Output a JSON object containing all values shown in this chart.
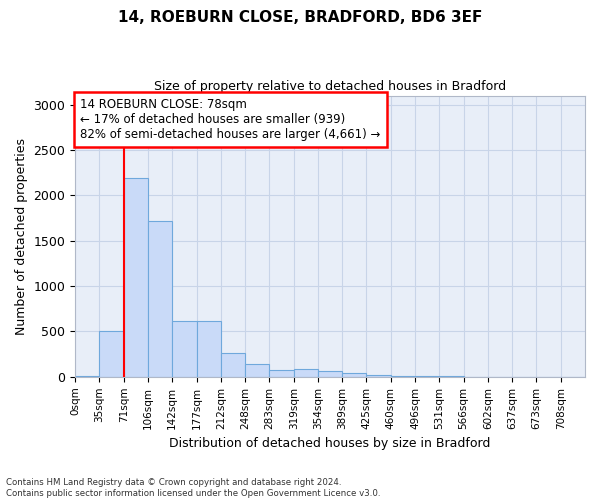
{
  "title_line1": "14, ROEBURN CLOSE, BRADFORD, BD6 3EF",
  "title_line2": "Size of property relative to detached houses in Bradford",
  "xlabel": "Distribution of detached houses by size in Bradford",
  "ylabel": "Number of detached properties",
  "footnote": "Contains HM Land Registry data © Crown copyright and database right 2024.\nContains public sector information licensed under the Open Government Licence v3.0.",
  "bin_labels": [
    "0sqm",
    "35sqm",
    "71sqm",
    "106sqm",
    "142sqm",
    "177sqm",
    "212sqm",
    "248sqm",
    "283sqm",
    "319sqm",
    "354sqm",
    "389sqm",
    "425sqm",
    "460sqm",
    "496sqm",
    "531sqm",
    "566sqm",
    "602sqm",
    "637sqm",
    "673sqm",
    "708sqm"
  ],
  "bar_values": [
    5,
    510,
    2190,
    1720,
    620,
    620,
    265,
    145,
    80,
    90,
    65,
    45,
    20,
    10,
    5,
    5,
    3,
    2,
    1,
    1,
    1
  ],
  "bar_color": "#c9daf8",
  "bar_edge_color": "#6fa8dc",
  "property_line_bin_index": 2.0,
  "annotation_text": "14 ROEBURN CLOSE: 78sqm\n← 17% of detached houses are smaller (939)\n82% of semi-detached houses are larger (4,661) →",
  "annotation_box_color": "white",
  "annotation_box_edge_color": "red",
  "vline_color": "red",
  "ylim": [
    0,
    3100
  ],
  "yticks": [
    0,
    500,
    1000,
    1500,
    2000,
    2500,
    3000
  ],
  "grid_color": "#c8d4e8",
  "background_color": "white",
  "plot_bg_color": "#e8eef8"
}
